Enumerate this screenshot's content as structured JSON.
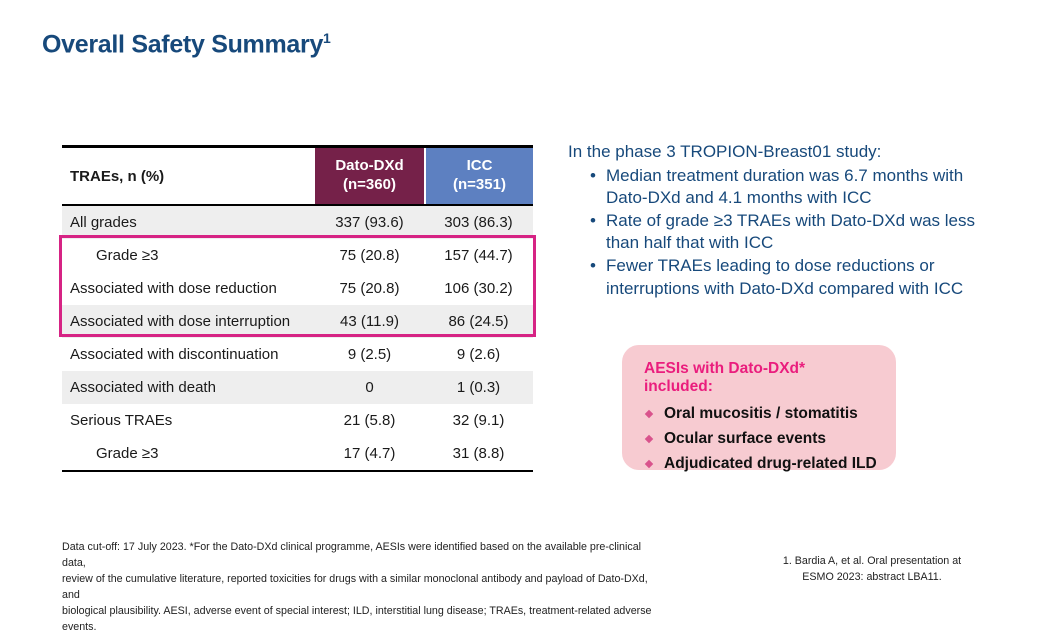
{
  "slide": {
    "title": "Overall Safety Summary",
    "title_superscript": "1"
  },
  "table": {
    "header": {
      "label": "TRAEs, n (%)",
      "dato_line1": "Dato-DXd",
      "dato_line2": "(n=360)",
      "icc_line1": "ICC",
      "icc_line2": "(n=351)"
    },
    "rows": [
      {
        "label": "All grades",
        "dato": "337 (93.6)",
        "icc": "303 (86.3)",
        "indent": false,
        "shaded": true
      },
      {
        "label": "Grade ≥3",
        "dato": "75 (20.8)",
        "icc": "157 (44.7)",
        "indent": true,
        "shaded": false
      },
      {
        "label": "Associated with dose reduction",
        "dato": "75 (20.8)",
        "icc": "106 (30.2)",
        "indent": false,
        "shaded": false
      },
      {
        "label": "Associated with dose interruption",
        "dato": "43 (11.9)",
        "icc": "86 (24.5)",
        "indent": false,
        "shaded": true
      },
      {
        "label": "Associated with discontinuation",
        "dato": "9 (2.5)",
        "icc": "9 (2.6)",
        "indent": false,
        "shaded": false
      },
      {
        "label": "Associated with death",
        "dato": "0",
        "icc": "1 (0.3)",
        "indent": false,
        "shaded": true
      },
      {
        "label": "Serious TRAEs",
        "dato": "21 (5.8)",
        "icc": "32 (9.1)",
        "indent": false,
        "shaded": false
      },
      {
        "label": "Grade ≥3",
        "dato": "17 (4.7)",
        "icc": "31 (8.8)",
        "indent": true,
        "shaded": false
      }
    ],
    "highlighted_row_labels": [
      "Grade ≥3",
      "Associated with dose reduction",
      "Associated with dose interruption"
    ]
  },
  "right_panel": {
    "intro": "In the phase 3 TROPION-Breast01 study:",
    "bullet_glyph": "•",
    "bullets": [
      "Median treatment duration was 6.7 months with Dato-DXd and 4.1 months with ICC",
      "Rate of grade ≥3 TRAEs with Dato-DXd was less than half that with ICC",
      "Fewer TRAEs leading to dose reductions or interruptions with Dato-DXd compared with ICC"
    ]
  },
  "aesi_box": {
    "title": "AESIs with Dato-DXd* included:",
    "items": [
      "Oral mucositis / stomatitis",
      "Ocular surface events",
      "Adjudicated drug-related ILD"
    ]
  },
  "footnotes": {
    "left_lines": [
      "Data cut-off: 17 July 2023. *For the Dato-DXd clinical programme, AESIs were identified based on the available pre-clinical data,",
      "review of the cumulative literature, reported toxicities for drugs with a similar monoclonal antibody and payload of Dato-DXd, and",
      "biological plausibility. AESI, adverse event of special interest; ILD, interstitial lung disease; TRAEs, treatment-related adverse events."
    ],
    "reference_lines": [
      "1. Bardia A, et al. Oral presentation at",
      "ESMO 2023: abstract LBA11."
    ]
  },
  "colors": {
    "title_blue": "#17497b",
    "dato_maroon": "#752149",
    "icc_blue": "#5d80c1",
    "highlight_pink": "#d62384",
    "aesi_box_bg": "#f7cbd1",
    "aesi_title_magenta": "#ea1d7d",
    "row_stripe_gray": "#eeeeee"
  }
}
